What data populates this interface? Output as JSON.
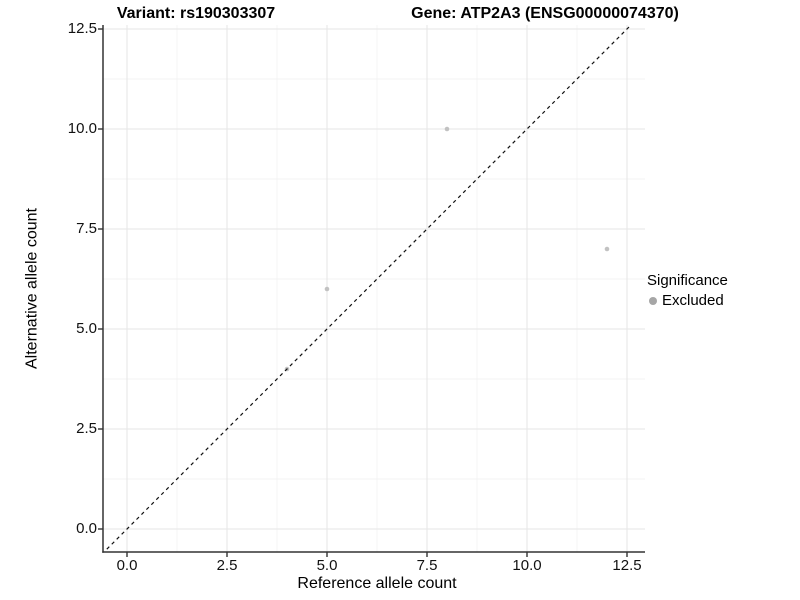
{
  "chart_data": {
    "type": "scatter",
    "title_left": "Variant: rs190303307",
    "title_right": "Gene: ATP2A3 (ENSG00000074370)",
    "xlabel": "Reference allele count",
    "ylabel": "Alternative allele count",
    "xlim": [
      -0.6,
      12.95
    ],
    "ylim": [
      -0.575,
      12.6
    ],
    "x_ticks": [
      {
        "value": 0,
        "label": "0.0"
      },
      {
        "value": 2.5,
        "label": "2.5"
      },
      {
        "value": 5,
        "label": "5.0"
      },
      {
        "value": 7.5,
        "label": "7.5"
      },
      {
        "value": 10,
        "label": "10.0"
      },
      {
        "value": 12.5,
        "label": "12.5"
      }
    ],
    "y_ticks": [
      {
        "value": 0,
        "label": "0.0"
      },
      {
        "value": 2.5,
        "label": "2.5"
      },
      {
        "value": 5,
        "label": "5.0"
      },
      {
        "value": 7.5,
        "label": "7.5"
      },
      {
        "value": 10,
        "label": "10.0"
      },
      {
        "value": 12.5,
        "label": "12.5"
      }
    ],
    "x_minor_ticks": [
      1.25,
      3.75,
      6.25,
      8.75,
      11.25
    ],
    "y_minor_ticks": [
      1.25,
      3.75,
      6.25,
      8.75,
      11.25
    ],
    "series": [
      {
        "name": "Excluded",
        "color": "#c2c2c2",
        "points": [
          [
            4,
            4
          ],
          [
            5,
            6
          ],
          [
            8,
            10
          ],
          [
            12,
            7
          ]
        ]
      }
    ],
    "reference_line": {
      "type": "identity",
      "slope": 1,
      "intercept": 0,
      "style": "dashed",
      "color": "#111111"
    },
    "grid": {
      "show": true,
      "major_color": "#e6e6e6",
      "minor_color": "#f3f3f3"
    },
    "legend": {
      "title": "Significance",
      "position": "right",
      "entries": [
        {
          "label": "Excluded",
          "color": "#a6a6a6",
          "marker": "circle"
        }
      ]
    },
    "colors": {
      "axis_line": "#333333",
      "tick_mark": "#333333",
      "background": "#ffffff"
    }
  }
}
